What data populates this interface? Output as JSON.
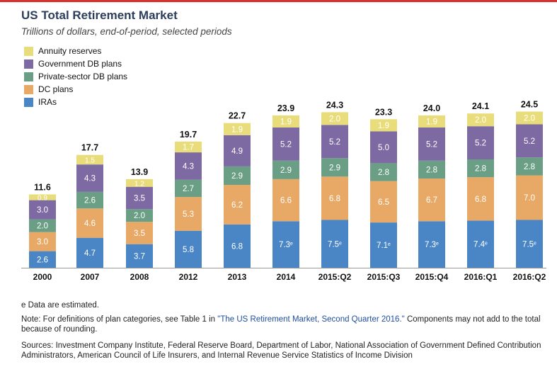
{
  "chart_data": {
    "type": "bar",
    "stacked": true,
    "title": "US Total Retirement Market",
    "subtitle": "Trillions of dollars, end-of-period, selected periods",
    "categories": [
      "2000",
      "2007",
      "2008",
      "2012",
      "2013",
      "2014",
      "2015:Q2",
      "2015:Q3",
      "2015:Q4",
      "2016:Q1",
      "2016:Q2"
    ],
    "totals": [
      "11.6",
      "17.7",
      "13.9",
      "19.7",
      "22.7",
      "23.9",
      "24.3",
      "23.3",
      "24.0",
      "24.1",
      "24.5"
    ],
    "series": [
      {
        "name": "IRAs",
        "color": "#4a86c5",
        "values": [
          2.6,
          4.7,
          3.7,
          5.8,
          6.8,
          7.3,
          7.5,
          7.1,
          7.3,
          7.4,
          7.5
        ],
        "labels": [
          "2.6",
          "4.7",
          "3.7",
          "5.8",
          "6.8",
          "7.3e",
          "7.5e",
          "7.1e",
          "7.3e",
          "7.4e",
          "7.5e"
        ]
      },
      {
        "name": "DC plans",
        "color": "#e8a966",
        "values": [
          3.0,
          4.6,
          3.5,
          5.3,
          6.2,
          6.6,
          6.8,
          6.5,
          6.7,
          6.8,
          7.0
        ],
        "labels": [
          "3.0",
          "4.6",
          "3.5",
          "5.3",
          "6.2",
          "6.6",
          "6.8",
          "6.5",
          "6.7",
          "6.8",
          "7.0"
        ]
      },
      {
        "name": "Private-sector DB plans",
        "color": "#6a9e85",
        "values": [
          2.0,
          2.6,
          2.0,
          2.7,
          2.9,
          2.9,
          2.9,
          2.8,
          2.8,
          2.8,
          2.8
        ],
        "labels": [
          "2.0",
          "2.6",
          "2.0",
          "2.7",
          "2.9",
          "2.9",
          "2.9",
          "2.8",
          "2.8",
          "2.8",
          "2.8"
        ]
      },
      {
        "name": "Government DB plans",
        "color": "#7d6aa3",
        "values": [
          3.0,
          4.3,
          3.5,
          4.3,
          4.9,
          5.2,
          5.2,
          5.0,
          5.2,
          5.2,
          5.2
        ],
        "labels": [
          "3.0",
          "4.3",
          "3.5",
          "4.3",
          "4.9",
          "5.2",
          "5.2",
          "5.0",
          "5.2",
          "5.2",
          "5.2"
        ]
      },
      {
        "name": "Annuity reserves",
        "color": "#e9dd7b",
        "values": [
          0.9,
          1.5,
          1.2,
          1.7,
          1.9,
          1.9,
          2.0,
          1.9,
          1.9,
          2.0,
          2.0
        ],
        "labels": [
          "0.9",
          "1.5",
          "1.2",
          "1.7",
          "1.9",
          "1.9",
          "2.0",
          "1.9",
          "1.9",
          "2.0",
          "2.0"
        ]
      }
    ],
    "legend_order": [
      "Annuity reserves",
      "Government DB plans",
      "Private-sector DB plans",
      "DC plans",
      "IRAs"
    ],
    "legend_position": "top-left",
    "ylim": [
      0,
      26
    ],
    "grid": false,
    "annotations": [
      "e Data are estimated.",
      "Note: For definitions of plan categories, see Table 1 in",
      "\"The US Retirement Market, Second Quarter 2016.\"",
      "Components may not add to the total because of rounding.",
      "Sources: Investment Company Institute, Federal Reserve Board, Department of Labor, National Association of Government Defined Contribution Administrators, American Council of Life Insurers, and Internal Revenue Service Statistics of Income Division"
    ]
  },
  "legend": [
    {
      "name": "Annuity reserves",
      "color": "#e9dd7b"
    },
    {
      "name": "Government DB plans",
      "color": "#7d6aa3"
    },
    {
      "name": "Private-sector DB plans",
      "color": "#6a9e85"
    },
    {
      "name": "DC plans",
      "color": "#e8a966"
    },
    {
      "name": "IRAs",
      "color": "#4a86c5"
    }
  ]
}
